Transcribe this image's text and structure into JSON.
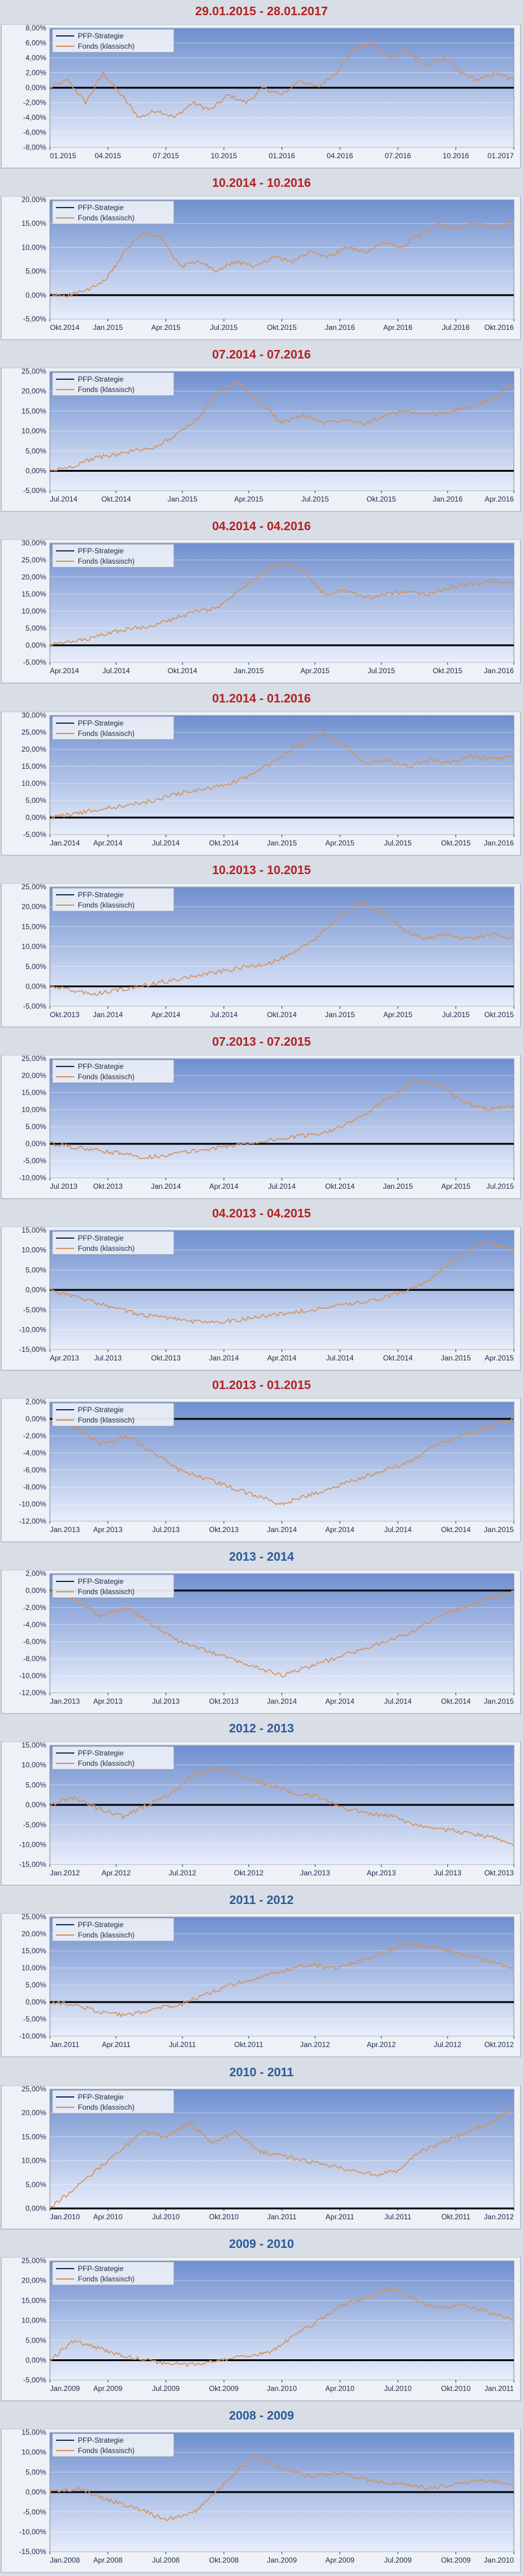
{
  "page": {
    "background": "#d9dde6",
    "legend": {
      "strategy": "PFP-Strategie",
      "fund": "Fonds (klassisch)"
    },
    "colors": {
      "title_red": "#b22222",
      "title_blue": "#2a5b99",
      "fund_line": "#d4915c",
      "strategy_line": "#1a2e5a",
      "plot_top": "#6f8fcf",
      "plot_bottom": "#e8eefb",
      "zero_line": "#000000"
    }
  },
  "chart_data": [
    {
      "type": "line",
      "title": "29.01.2015 - 28.01.2017",
      "title_color": "red",
      "yticks": [
        "8,00%",
        "6,00%",
        "4,00%",
        "2,00%",
        "0,00%",
        "-2,00%",
        "-4,00%",
        "-6,00%",
        "-8,00%"
      ],
      "ylim": [
        -8,
        8
      ],
      "xticks": [
        "01.2015",
        "04.2015",
        "07.2015",
        "10.2015",
        "01.2016",
        "04.2016",
        "07.2016",
        "10.2016",
        "01.2017"
      ],
      "series": [
        {
          "name": "PFP-Strategie",
          "values": [
            0,
            0
          ]
        },
        {
          "name": "Fonds (klassisch)",
          "values": [
            0,
            1,
            -2,
            2,
            -1,
            -4,
            -3,
            -4,
            -2,
            -3,
            -1,
            -2,
            0,
            -1,
            1,
            0,
            2,
            5,
            6,
            4,
            5,
            3,
            4,
            2,
            1,
            2,
            1
          ]
        }
      ]
    },
    {
      "type": "line",
      "title": "10.2014 - 10.2016",
      "title_color": "red",
      "yticks": [
        "20,00%",
        "15,00%",
        "10,00%",
        "5,00%",
        "0,00%",
        "-5,00%"
      ],
      "ylim": [
        -5,
        20
      ],
      "xticks": [
        "Okt.2014",
        "Jan.2015",
        "Apr.2015",
        "Jul.2015",
        "Okt.2015",
        "Jan.2016",
        "Apr.2016",
        "Jul.2016",
        "Okt.2016"
      ],
      "series": [
        {
          "name": "PFP-Strategie",
          "values": [
            0,
            0
          ]
        },
        {
          "name": "Fonds (klassisch)",
          "values": [
            0,
            0,
            1,
            3,
            9,
            13,
            12,
            6,
            7,
            5,
            7,
            6,
            8,
            7,
            9,
            8,
            10,
            9,
            11,
            10,
            13,
            15,
            14,
            15,
            14,
            15
          ]
        }
      ]
    },
    {
      "type": "line",
      "title": "07.2014 - 07.2016",
      "title_color": "red",
      "yticks": [
        "25,00%",
        "20,00%",
        "15,00%",
        "10,00%",
        "5,00%",
        "0,00%",
        "-5,00%"
      ],
      "ylim": [
        -5,
        25
      ],
      "xticks": [
        "Jul.2014",
        "Okt.2014",
        "Jan.2015",
        "Apr.2015",
        "Jul.2015",
        "Okt.2015",
        "Jan.2016",
        "Apr.2016"
      ],
      "series": [
        {
          "name": "PFP-Strategie",
          "values": [
            0,
            0
          ]
        },
        {
          "name": "Fonds (klassisch)",
          "values": [
            0,
            1,
            3,
            4,
            5,
            6,
            9,
            13,
            20,
            22,
            17,
            12,
            14,
            12,
            13,
            12,
            14,
            15,
            14,
            15,
            16,
            18,
            22
          ]
        }
      ]
    },
    {
      "type": "line",
      "title": "04.2014 - 04.2016",
      "title_color": "red",
      "yticks": [
        "30,00%",
        "25,00%",
        "20,00%",
        "15,00%",
        "10,00%",
        "5,00%",
        "0,00%",
        "-5,00%"
      ],
      "ylim": [
        -5,
        30
      ],
      "xticks": [
        "Apr.2014",
        "Jul.2014",
        "Okt.2014",
        "Jan.2015",
        "Apr.2015",
        "Jul.2015",
        "Okt.2015",
        "Jan.2016"
      ],
      "series": [
        {
          "name": "PFP-Strategie",
          "values": [
            0,
            0
          ]
        },
        {
          "name": "Fonds (klassisch)",
          "values": [
            0,
            1,
            2,
            4,
            5,
            6,
            8,
            10,
            11,
            16,
            21,
            24,
            22,
            15,
            16,
            14,
            15,
            16,
            15,
            17,
            18,
            19,
            18
          ]
        }
      ]
    },
    {
      "type": "line",
      "title": "01.2014 - 01.2016",
      "title_color": "red",
      "yticks": [
        "30,00%",
        "25,00%",
        "20,00%",
        "15,00%",
        "10,00%",
        "5,00%",
        "0,00%",
        "-5,00%"
      ],
      "ylim": [
        -5,
        30
      ],
      "xticks": [
        "Jan.2014",
        "Apr.2014",
        "Jul.2014",
        "Okt.2014",
        "Jan.2015",
        "Apr.2015",
        "Jul.2015",
        "Okt.2015",
        "Jan.2016"
      ],
      "series": [
        {
          "name": "PFP-Strategie",
          "values": [
            0,
            0
          ]
        },
        {
          "name": "Fonds (klassisch)",
          "values": [
            0,
            1,
            2,
            3,
            4,
            5,
            7,
            8,
            9,
            11,
            14,
            18,
            22,
            25,
            21,
            16,
            17,
            15,
            17,
            16,
            18,
            17,
            18
          ]
        }
      ]
    },
    {
      "type": "line",
      "title": "10.2013 - 10.2015",
      "title_color": "red",
      "yticks": [
        "25,00%",
        "20,00%",
        "15,00%",
        "10,00%",
        "5,00%",
        "0,00%",
        "-5,00%"
      ],
      "ylim": [
        -5,
        25
      ],
      "xticks": [
        "Okt.2013",
        "Jan.2014",
        "Apr.2014",
        "Jul.2014",
        "Okt.2014",
        "Jan.2015",
        "Apr.2015",
        "Jul.2015",
        "Okt.2015"
      ],
      "series": [
        {
          "name": "PFP-Strategie",
          "values": [
            0,
            0
          ]
        },
        {
          "name": "Fonds (klassisch)",
          "values": [
            0,
            -1,
            -2,
            -1,
            0,
            1,
            2,
            3,
            4,
            5,
            6,
            8,
            12,
            17,
            21,
            19,
            14,
            12,
            13,
            12,
            13,
            12
          ]
        }
      ]
    },
    {
      "type": "line",
      "title": "07.2013 - 07.2015",
      "title_color": "red",
      "yticks": [
        "25,00%",
        "20,00%",
        "15,00%",
        "10,00%",
        "5,00%",
        "0,00%",
        "-5,00%",
        "-10,00%"
      ],
      "ylim": [
        -10,
        25
      ],
      "xticks": [
        "Jul.2013",
        "Okt.2013",
        "Jan.2014",
        "Apr.2014",
        "Jul.2014",
        "Okt.2014",
        "Jan.2015",
        "Apr.2015",
        "Jul.2015"
      ],
      "series": [
        {
          "name": "PFP-Strategie",
          "values": [
            0,
            0
          ]
        },
        {
          "name": "Fonds (klassisch)",
          "values": [
            0,
            -1,
            -2,
            -3,
            -4,
            -3,
            -2,
            -1,
            0,
            1,
            2,
            3,
            5,
            9,
            14,
            19,
            17,
            12,
            10,
            11
          ]
        }
      ]
    },
    {
      "type": "line",
      "title": "04.2013 - 04.2015",
      "title_color": "red",
      "yticks": [
        "15,00%",
        "10,00%",
        "5,00%",
        "0,00%",
        "-5,00%",
        "-10,00%",
        "-15,00%"
      ],
      "ylim": [
        -15,
        15
      ],
      "xticks": [
        "Apr.2013",
        "Jul.2013",
        "Okt.2013",
        "Jan.2014",
        "Apr.2014",
        "Jul.2014",
        "Okt.2014",
        "Jan.2015",
        "Apr.2015"
      ],
      "series": [
        {
          "name": "PFP-Strategie",
          "values": [
            0,
            0
          ]
        },
        {
          "name": "Fonds (klassisch)",
          "values": [
            0,
            -2,
            -4,
            -6,
            -7,
            -8,
            -8,
            -7,
            -6,
            -5,
            -4,
            -3,
            -1,
            2,
            8,
            12,
            10
          ]
        }
      ]
    },
    {
      "type": "line",
      "title": "01.2013 - 01.2015",
      "title_color": "red",
      "yticks": [
        "2,00%",
        "0,00%",
        "-2,00%",
        "-4,00%",
        "-6,00%",
        "-8,00%",
        "-10,00%",
        "-12,00%"
      ],
      "ylim": [
        -12,
        2
      ],
      "xticks": [
        "Jan.2013",
        "Apr.2013",
        "Jul.2013",
        "Okt.2013",
        "Jan.2014",
        "Apr.2014",
        "Jul.2014",
        "Okt.2014",
        "Jan.2015"
      ],
      "series": [
        {
          "name": "PFP-Strategie",
          "values": [
            0,
            0
          ]
        },
        {
          "name": "Fonds (klassisch)",
          "values": [
            0,
            -1,
            -3,
            -2,
            -4,
            -6,
            -7,
            -8,
            -9,
            -10,
            -9,
            -8,
            -7,
            -6,
            -5,
            -3,
            -2,
            -1,
            0
          ]
        }
      ]
    },
    {
      "type": "line",
      "title": "2013 - 2014",
      "title_color": "blue",
      "yticks": [
        "2,00%",
        "0,00%",
        "-2,00%",
        "-4,00%",
        "-6,00%",
        "-8,00%",
        "-10,00%",
        "-12,00%"
      ],
      "ylim": [
        -12,
        2
      ],
      "xticks": [
        "Jan.2013",
        "Apr.2013",
        "Jul.2013",
        "Okt.2013",
        "Jan.2014",
        "Apr.2014",
        "Jul.2014",
        "Okt.2014",
        "Jan.2015"
      ],
      "series": [
        {
          "name": "PFP-Strategie",
          "values": [
            0,
            0
          ]
        },
        {
          "name": "Fonds (klassisch)",
          "values": [
            0,
            -1,
            -3,
            -2,
            -4,
            -6,
            -7,
            -8,
            -9,
            -10,
            -9,
            -8,
            -7,
            -6,
            -5,
            -3,
            -2,
            -1,
            0
          ]
        }
      ]
    },
    {
      "type": "line",
      "title": "2012 - 2013",
      "title_color": "blue",
      "yticks": [
        "15,00%",
        "10,00%",
        "5,00%",
        "0,00%",
        "-5,00%",
        "-10,00%",
        "-15,00%"
      ],
      "ylim": [
        -15,
        15
      ],
      "xticks": [
        "Jan.2012",
        "Apr.2012",
        "Jul.2012",
        "Okt.2012",
        "Jan.2013",
        "Apr.2013",
        "Jul.2013",
        "Okt.2013"
      ],
      "series": [
        {
          "name": "PFP-Strategie",
          "values": [
            0,
            0
          ]
        },
        {
          "name": "Fonds (klassisch)",
          "values": [
            0,
            2,
            -1,
            -3,
            0,
            3,
            8,
            9,
            7,
            5,
            3,
            2,
            -1,
            -2,
            -3,
            -5,
            -6,
            -7,
            -8,
            -10
          ]
        }
      ]
    },
    {
      "type": "line",
      "title": "2011 - 2012",
      "title_color": "blue",
      "yticks": [
        "25,00%",
        "20,00%",
        "15,00%",
        "10,00%",
        "5,00%",
        "0,00%",
        "-5,00%",
        "-10,00%"
      ],
      "ylim": [
        -10,
        25
      ],
      "xticks": [
        "Jan.2011",
        "Apr.2011",
        "Jul.2011",
        "Okt.2011",
        "Jan.2012",
        "Apr.2012",
        "Jul.2012",
        "Okt.2012"
      ],
      "series": [
        {
          "name": "PFP-Strategie",
          "values": [
            0,
            0
          ]
        },
        {
          "name": "Fonds (klassisch)",
          "values": [
            0,
            -1,
            -3,
            -4,
            -2,
            -1,
            2,
            5,
            7,
            9,
            11,
            10,
            12,
            15,
            17,
            16,
            14,
            12,
            10
          ]
        }
      ]
    },
    {
      "type": "line",
      "title": "2010 - 2011",
      "title_color": "blue",
      "yticks": [
        "25,00%",
        "20,00%",
        "15,00%",
        "10,00%",
        "5,00%",
        "0,00%"
      ],
      "ylim": [
        0,
        25
      ],
      "xticks": [
        "Jan.2010",
        "Apr.2010",
        "Jul.2010",
        "Okt.2010",
        "Jan.2011",
        "Apr.2011",
        "Jul.2011",
        "Okt.2011",
        "Jan.2012"
      ],
      "series": [
        {
          "name": "PFP-Strategie",
          "values": [
            0,
            0
          ]
        },
        {
          "name": "Fonds (klassisch)",
          "values": [
            0,
            4,
            8,
            12,
            16,
            15,
            18,
            14,
            16,
            12,
            11,
            10,
            9,
            8,
            7,
            8,
            12,
            14,
            16,
            18,
            21
          ]
        }
      ]
    },
    {
      "type": "line",
      "title": "2009 - 2010",
      "title_color": "blue",
      "yticks": [
        "25,00%",
        "20,00%",
        "15,00%",
        "10,00%",
        "5,00%",
        "0,00%",
        "-5,00%"
      ],
      "ylim": [
        -5,
        25
      ],
      "xticks": [
        "Jan.2009",
        "Apr.2009",
        "Jul.2009",
        "Okt.2009",
        "Jan.2010",
        "Apr.2010",
        "Jul.2010",
        "Okt.2010",
        "Jan.2011"
      ],
      "series": [
        {
          "name": "PFP-Strategie",
          "values": [
            0,
            0
          ]
        },
        {
          "name": "Fonds (klassisch)",
          "values": [
            0,
            5,
            3,
            1,
            0,
            -1,
            -1,
            0,
            1,
            2,
            6,
            10,
            14,
            16,
            18,
            15,
            13,
            14,
            12,
            10
          ]
        }
      ]
    },
    {
      "type": "line",
      "title": "2008 - 2009",
      "title_color": "blue",
      "yticks": [
        "15,00%",
        "10,00%",
        "5,00%",
        "0,00%",
        "-5,00%",
        "-10,00%",
        "-15,00%"
      ],
      "ylim": [
        -15,
        15
      ],
      "xticks": [
        "Jan.2008",
        "Apr.2008",
        "Jul.2008",
        "Okt.2008",
        "Jan.2009",
        "Apr.2009",
        "Jul.2009",
        "Okt.2009",
        "Jan.2010"
      ],
      "series": [
        {
          "name": "PFP-Strategie",
          "values": [
            0,
            0
          ]
        },
        {
          "name": "Fonds (klassisch)",
          "values": [
            0,
            1,
            -2,
            -4,
            -7,
            -5,
            2,
            9,
            6,
            4,
            5,
            3,
            2,
            1,
            2,
            3,
            2
          ]
        }
      ]
    }
  ]
}
